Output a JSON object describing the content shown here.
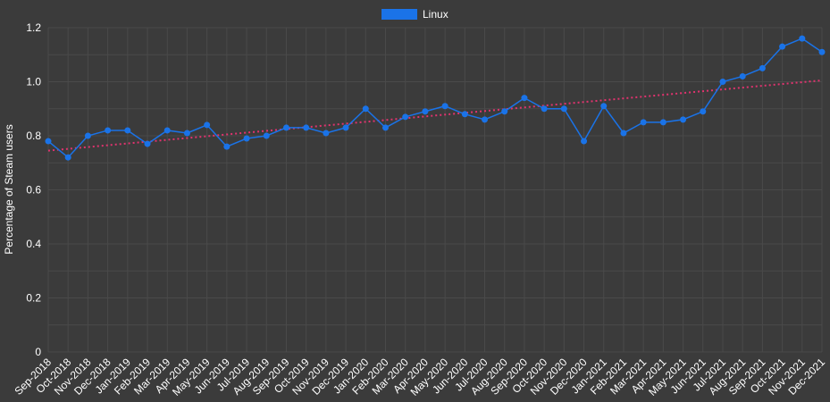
{
  "chart_data": {
    "type": "line",
    "title": "",
    "xlabel": "",
    "ylabel": "Percentage of Steam users",
    "ylim": [
      0,
      1.2
    ],
    "yticks": [
      "0",
      "0.2",
      "0.4",
      "0.6",
      "0.8",
      "1.0",
      "1.2"
    ],
    "grid": true,
    "legend": "top-center",
    "categories": [
      "Sep-2018",
      "Oct-2018",
      "Nov-2018",
      "Dec-2018",
      "Jan-2019",
      "Feb-2019",
      "Mar-2019",
      "Apr-2019",
      "May-2019",
      "Jun-2019",
      "Jul-2019",
      "Aug-2019",
      "Sep-2019",
      "Oct-2019",
      "Nov-2019",
      "Dec-2019",
      "Jan-2020",
      "Feb-2020",
      "Mar-2020",
      "Apr-2020",
      "May-2020",
      "Jun-2020",
      "Jul-2020",
      "Aug-2020",
      "Sep-2020",
      "Oct-2020",
      "Nov-2020",
      "Dec-2020",
      "Jan-2021",
      "Feb-2021",
      "Mar-2021",
      "Apr-2021",
      "May-2021",
      "Jun-2021",
      "Jul-2021",
      "Aug-2021",
      "Sep-2021",
      "Oct-2021",
      "Nov-2021",
      "Dec-2021"
    ],
    "series": [
      {
        "name": "Linux",
        "color": "#1a73e8",
        "values": [
          0.78,
          0.72,
          0.8,
          0.82,
          0.82,
          0.77,
          0.82,
          0.81,
          0.84,
          0.76,
          0.79,
          0.8,
          0.83,
          0.83,
          0.81,
          0.83,
          0.9,
          0.83,
          0.87,
          0.89,
          0.91,
          0.88,
          0.86,
          0.89,
          0.94,
          0.9,
          0.9,
          0.78,
          0.91,
          0.81,
          0.85,
          0.85,
          0.86,
          0.89,
          1.0,
          1.02,
          1.05,
          1.13,
          1.16,
          1.11
        ]
      }
    ],
    "trendline": {
      "color": "#e0336e",
      "start": 0.745,
      "end": 1.005
    },
    "colors": {
      "background": "#3b3b3b",
      "grid": "#4a4a4a",
      "text": "#ffffff"
    }
  }
}
